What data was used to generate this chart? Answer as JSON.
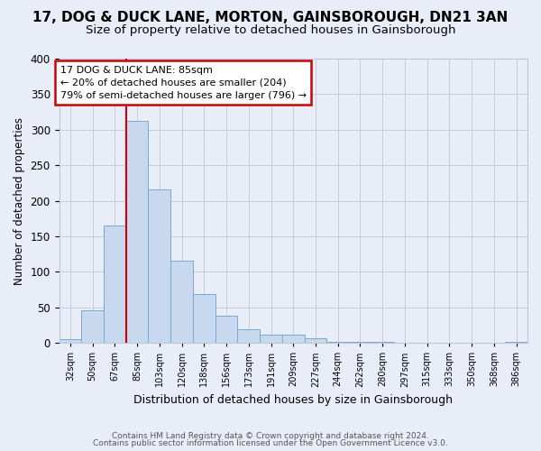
{
  "title": "17, DOG & DUCK LANE, MORTON, GAINSBOROUGH, DN21 3AN",
  "subtitle": "Size of property relative to detached houses in Gainsborough",
  "xlabel": "Distribution of detached houses by size in Gainsborough",
  "ylabel": "Number of detached properties",
  "footnote1": "Contains HM Land Registry data © Crown copyright and database right 2024.",
  "footnote2": "Contains public sector information licensed under the Open Government Licence v3.0.",
  "bin_labels": [
    "32sqm",
    "50sqm",
    "67sqm",
    "85sqm",
    "103sqm",
    "120sqm",
    "138sqm",
    "156sqm",
    "173sqm",
    "191sqm",
    "209sqm",
    "227sqm",
    "244sqm",
    "262sqm",
    "280sqm",
    "297sqm",
    "315sqm",
    "333sqm",
    "350sqm",
    "368sqm",
    "386sqm"
  ],
  "bar_heights": [
    5,
    46,
    165,
    313,
    216,
    116,
    69,
    38,
    19,
    12,
    12,
    6,
    1,
    1,
    1,
    0,
    0,
    0,
    0,
    0,
    1
  ],
  "bar_color": "#c8d8ee",
  "bar_edge_color": "#7aaad0",
  "vline_color": "#cc0000",
  "annotation_line1": "17 DOG & DUCK LANE: 85sqm",
  "annotation_line2": "← 20% of detached houses are smaller (204)",
  "annotation_line3": "79% of semi-detached houses are larger (796) →",
  "ylim": [
    0,
    400
  ],
  "yticks": [
    0,
    50,
    100,
    150,
    200,
    250,
    300,
    350,
    400
  ],
  "bg_color": "#e8edf8",
  "plot_bg_color": "#e8edf8",
  "grid_color": "#c0c8d8",
  "title_fontsize": 11,
  "subtitle_fontsize": 9.5
}
